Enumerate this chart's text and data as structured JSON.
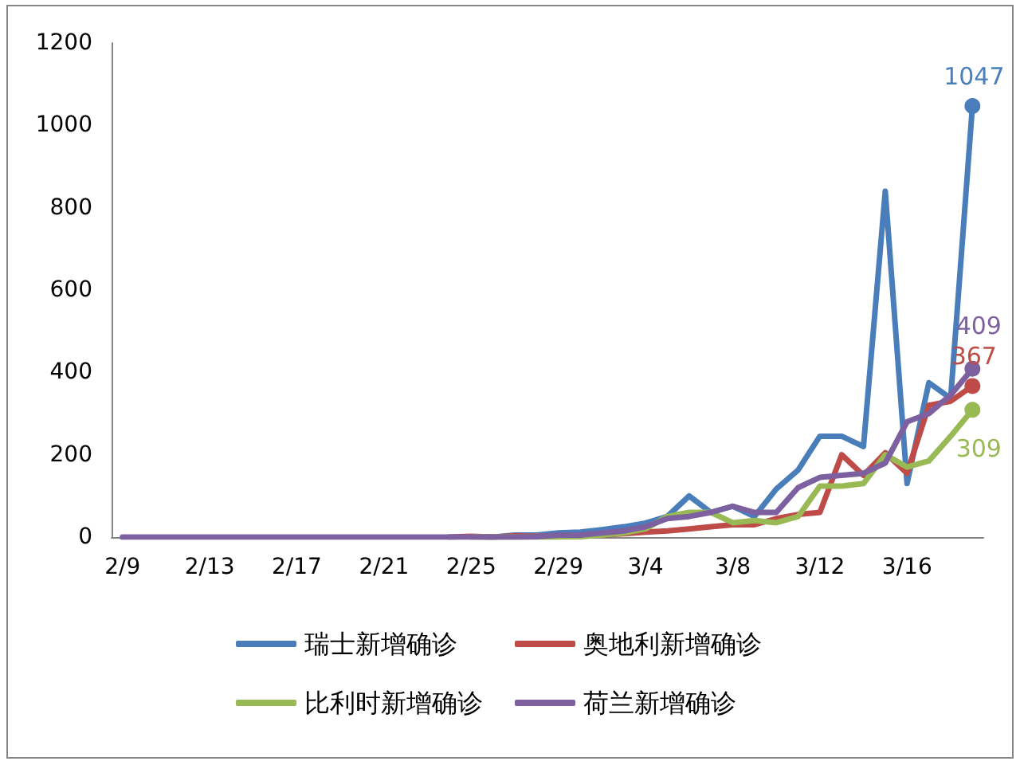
{
  "chart_data": {
    "type": "line",
    "categories": [
      "2/9",
      null,
      null,
      null,
      "2/13",
      null,
      null,
      null,
      "2/17",
      null,
      null,
      null,
      "2/21",
      null,
      null,
      null,
      "2/25",
      null,
      null,
      null,
      "2/29",
      null,
      null,
      null,
      "3/4",
      null,
      null,
      null,
      "3/8",
      null,
      null,
      null,
      "3/12",
      null,
      null,
      null,
      "3/16",
      null,
      null,
      null
    ],
    "series": [
      {
        "name": "瑞士新增确诊",
        "color": "#4a7ebb",
        "values": [
          null,
          null,
          null,
          null,
          null,
          null,
          null,
          null,
          null,
          null,
          null,
          null,
          null,
          null,
          null,
          null,
          1,
          0,
          5,
          5,
          10,
          12,
          18,
          25,
          34,
          50,
          100,
          60,
          75,
          50,
          117,
          163,
          245,
          245,
          220,
          840,
          130,
          375,
          337,
          1047
        ],
        "value_labels": [
          null,
          null,
          null,
          null,
          null,
          null,
          null,
          null,
          null,
          null,
          null,
          null,
          null,
          null,
          null,
          null,
          null,
          null,
          null,
          null,
          null,
          null,
          null,
          null,
          null,
          null,
          null,
          null,
          null,
          null,
          null,
          null,
          null,
          null,
          null,
          null,
          null,
          null,
          null,
          "1047"
        ]
      },
      {
        "name": "奥地利新增确诊",
        "color": "#be4b48",
        "values": [
          null,
          null,
          null,
          null,
          null,
          null,
          null,
          null,
          null,
          null,
          null,
          null,
          null,
          null,
          null,
          0,
          2,
          0,
          3,
          2,
          3,
          4,
          5,
          8,
          12,
          15,
          20,
          25,
          30,
          30,
          45,
          55,
          60,
          200,
          150,
          205,
          155,
          320,
          330,
          367
        ],
        "value_labels": [
          null,
          null,
          null,
          null,
          null,
          null,
          null,
          null,
          null,
          null,
          null,
          null,
          null,
          null,
          null,
          null,
          null,
          null,
          null,
          null,
          null,
          null,
          null,
          null,
          null,
          null,
          null,
          null,
          null,
          null,
          null,
          null,
          null,
          null,
          null,
          null,
          null,
          null,
          null,
          "367"
        ]
      },
      {
        "name": "比利时新增确诊",
        "color": "#98b954",
        "values": [
          null,
          null,
          null,
          null,
          null,
          null,
          null,
          null,
          null,
          null,
          null,
          null,
          null,
          null,
          null,
          null,
          0,
          0,
          0,
          0,
          0,
          1,
          5,
          10,
          20,
          50,
          60,
          60,
          35,
          40,
          35,
          50,
          124,
          124,
          130,
          200,
          170,
          185,
          245,
          309
        ],
        "value_labels": [
          null,
          null,
          null,
          null,
          null,
          null,
          null,
          null,
          null,
          null,
          null,
          null,
          null,
          null,
          null,
          null,
          null,
          null,
          null,
          null,
          null,
          null,
          null,
          null,
          null,
          null,
          null,
          null,
          null,
          null,
          null,
          null,
          null,
          null,
          null,
          null,
          null,
          null,
          null,
          "309"
        ]
      },
      {
        "name": "荷兰新增确诊",
        "color": "#7d60a0",
        "values": [
          0,
          0,
          0,
          0,
          0,
          0,
          0,
          0,
          0,
          0,
          0,
          0,
          0,
          0,
          0,
          0,
          0,
          0,
          0,
          1,
          5,
          5,
          10,
          15,
          25,
          45,
          50,
          60,
          75,
          60,
          60,
          120,
          145,
          150,
          155,
          180,
          280,
          300,
          345,
          409
        ],
        "value_labels": [
          null,
          null,
          null,
          null,
          null,
          null,
          null,
          null,
          null,
          null,
          null,
          null,
          null,
          null,
          null,
          null,
          null,
          null,
          null,
          null,
          null,
          null,
          null,
          null,
          null,
          null,
          null,
          null,
          null,
          null,
          null,
          null,
          null,
          null,
          null,
          null,
          null,
          null,
          null,
          "409"
        ]
      }
    ],
    "ylim": [
      0,
      1200
    ],
    "yticks": [
      0,
      200,
      400,
      600,
      800,
      1000,
      1200
    ],
    "legend": "bottom",
    "line_style": "solid"
  }
}
